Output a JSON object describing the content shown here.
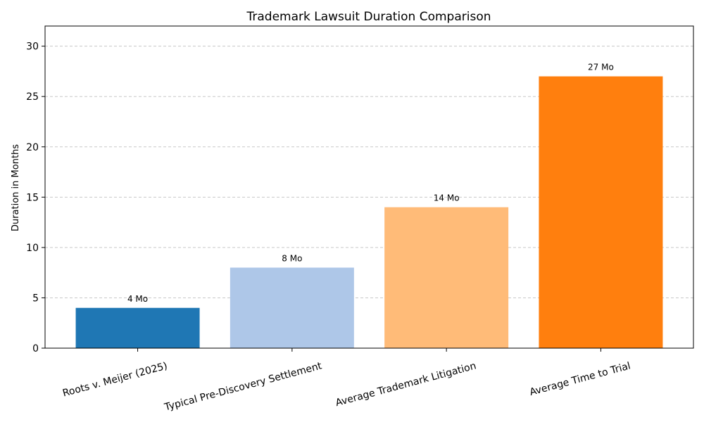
{
  "chart_data": {
    "type": "bar",
    "title": "Trademark Lawsuit Duration Comparison",
    "xlabel": "",
    "ylabel": "Duration in Months",
    "ylim": [
      0,
      32
    ],
    "yticks": [
      0,
      5,
      10,
      15,
      20,
      25,
      30
    ],
    "grid": true,
    "categories": [
      "Roots v. Meijer (2025)",
      "Typical Pre-Discovery Settlement",
      "Average Trademark Litigation",
      "Average Time to Trial"
    ],
    "values": [
      4,
      8,
      14,
      27
    ],
    "data_labels": [
      "4 Mo",
      "8 Mo",
      "14 Mo",
      "27 Mo"
    ],
    "colors": [
      "#1f77b4",
      "#aec7e8",
      "#ffbb78",
      "#ff7f0e"
    ]
  }
}
